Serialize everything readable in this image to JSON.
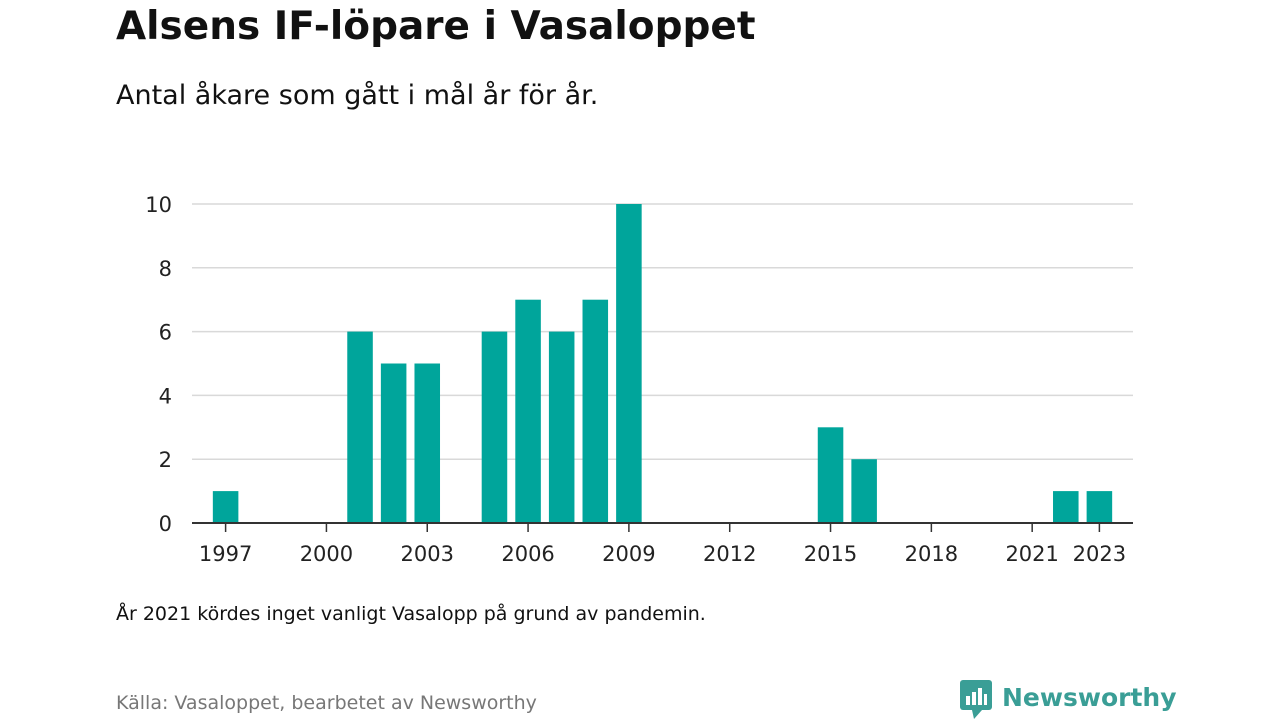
{
  "header": {
    "title": "Alsens IF-löpare i Vasaloppet",
    "subtitle": "Antal åkare som gått i mål år för år."
  },
  "footer": {
    "note": "År 2021 kördes inget vanligt Vasalopp på grund av pandemin.",
    "source": "Källa: Vasaloppet, bearbetet av Newsworthy",
    "brand": "Newsworthy",
    "brand_icon": "newsworthy-logo-icon"
  },
  "colors": {
    "bar": "#00a59b",
    "brand": "#3a9e96",
    "grid": "#d9d9d9",
    "axis": "#333333"
  },
  "chart_data": {
    "type": "bar",
    "title": "Alsens IF-löpare i Vasaloppet",
    "subtitle": "Antal åkare som gått i mål år för år.",
    "xlabel": "",
    "ylabel": "",
    "ylim": [
      0,
      10
    ],
    "xlim": [
      1996,
      2024
    ],
    "yticks": [
      0,
      2,
      4,
      6,
      8,
      10
    ],
    "xticks": [
      "1997",
      "2000",
      "2003",
      "2006",
      "2009",
      "2012",
      "2015",
      "2018",
      "2021",
      "2023"
    ],
    "grid": true,
    "categories": [
      "1997",
      "2001",
      "2002",
      "2003",
      "2005",
      "2006",
      "2007",
      "2008",
      "2009",
      "2015",
      "2016",
      "2022",
      "2023"
    ],
    "values": [
      1,
      6,
      5,
      5,
      6,
      7,
      6,
      7,
      10,
      3,
      2,
      1,
      1
    ]
  }
}
